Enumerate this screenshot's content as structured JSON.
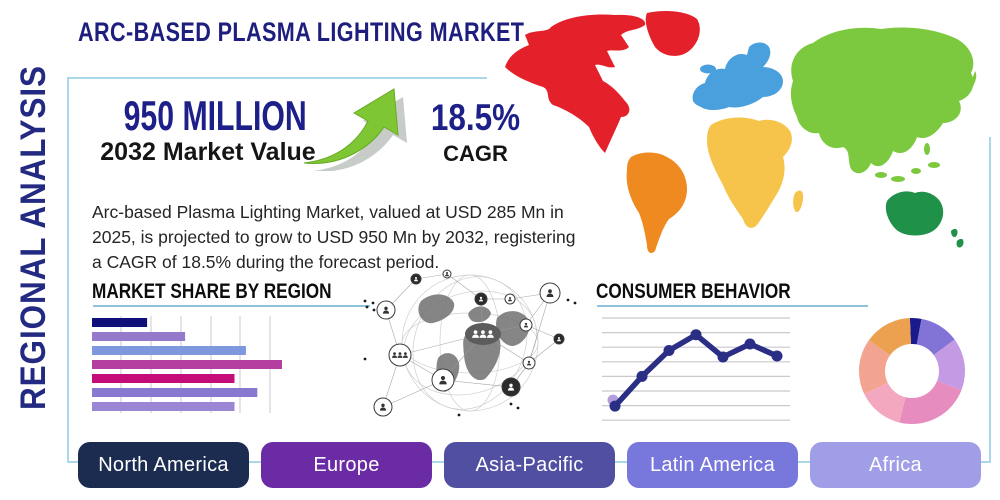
{
  "page_title": "ARC-BASED PLASMA LIGHTING MARKET",
  "side_label": "REGIONAL ANALYSIS",
  "stats": {
    "market_value": "950 MILLION",
    "market_value_caption": "2032 Market Value",
    "growth_icon": "up-trend-arrow-icon",
    "cagr_value": "18.5%",
    "cagr_caption": "CAGR"
  },
  "description": "Arc-based Plasma Lighting Market, valued at USD 285 Mn in 2025, is projected to grow to USD 950 Mn by 2032, registering a CAGR of 18.5% during the forecast period.",
  "region_buttons": [
    {
      "label": "North America",
      "color": "#1c2c50"
    },
    {
      "label": "Europe",
      "color": "#6a2ba5"
    },
    {
      "label": "Asia-Pacific",
      "color": "#504fa2"
    },
    {
      "label": "Latin America",
      "color": "#7877dc"
    },
    {
      "label": "Africa",
      "color": "#a09ee6"
    }
  ],
  "world_map": {
    "regions": [
      {
        "name": "north-america",
        "color": "#e4212b"
      },
      {
        "name": "greenland",
        "color": "#e4212b"
      },
      {
        "name": "south-america",
        "color": "#ef8a21"
      },
      {
        "name": "europe",
        "color": "#4aa0dc"
      },
      {
        "name": "iceland",
        "color": "#4aa0dc"
      },
      {
        "name": "africa",
        "color": "#f6c44a"
      },
      {
        "name": "madagascar",
        "color": "#f6c44a"
      },
      {
        "name": "asia",
        "color": "#7cc93f"
      },
      {
        "name": "se-asia-islands",
        "color": "#7cc93f"
      },
      {
        "name": "australia",
        "color": "#1f9148"
      },
      {
        "name": "new-zealand",
        "color": "#1f9148"
      }
    ]
  },
  "chart_data": [
    {
      "type": "bar",
      "orientation": "horizontal",
      "title": "MARKET SHARE BY REGION",
      "values": [
        29,
        49,
        81,
        100,
        75,
        87,
        75
      ],
      "value_note": "relative bar lengths, percent of longest bar; no axis labels shown",
      "bar_colors": [
        "#10107a",
        "#9579cb",
        "#7e97dd",
        "#b43fa0",
        "#c40d78",
        "#8878d0",
        "#9b85d5"
      ],
      "xlim": [
        0,
        105
      ],
      "grid": true,
      "legend": "none"
    },
    {
      "type": "line",
      "title": "CONSUMER BEHAVIOR",
      "x": [
        1,
        2,
        3,
        4,
        5,
        6,
        7
      ],
      "values": [
        15,
        47,
        75,
        92,
        68,
        82,
        69
      ],
      "ylim": [
        0,
        110
      ],
      "line_color": "#2b2e85",
      "start_marker_color": "#b39ddb",
      "grid": true,
      "legend": "none"
    },
    {
      "type": "pie",
      "donut": true,
      "values": [
        3.5,
        12,
        16,
        23,
        14,
        17,
        14.5
      ],
      "slice_colors": [
        "#1a1a8c",
        "#8273d6",
        "#c49ae4",
        "#e78cbe",
        "#f4a8c0",
        "#f2a491",
        "#eba14f"
      ],
      "legend": "none"
    }
  ],
  "colors": {
    "accent_navy": "#1d2088",
    "title_navy": "#1e1e7e",
    "frame_line": "#aad7e9",
    "heading_underline": "#8fc3dc",
    "arrow_green": "#7ec633"
  }
}
